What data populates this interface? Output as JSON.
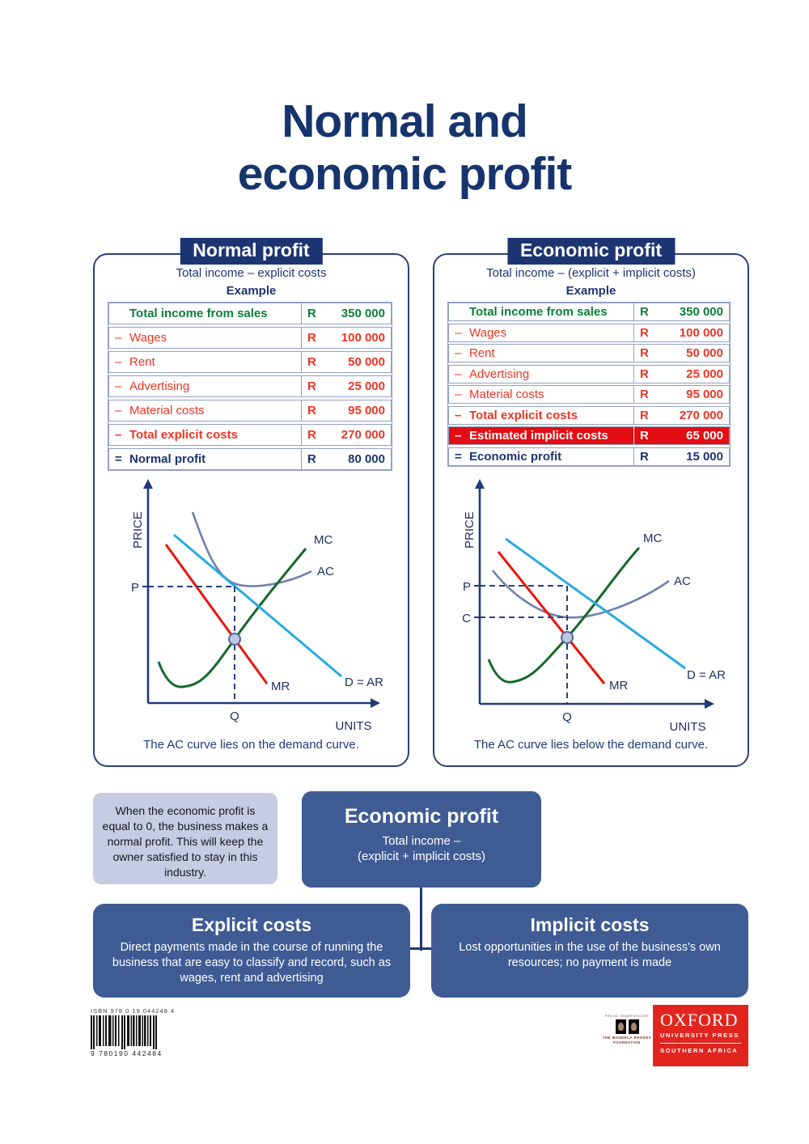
{
  "title": {
    "line1": "Normal and",
    "line2": "economic profit"
  },
  "panels": [
    {
      "badge": "Normal profit",
      "formula": "Total income – explicit costs",
      "example": "Example",
      "table": {
        "rows": [
          {
            "prefix": "",
            "label": "Total income from sales",
            "currency": "R",
            "amount": "350 000",
            "style": "income"
          },
          {
            "prefix": "–",
            "label": "Wages",
            "currency": "R",
            "amount": "100 000",
            "style": "cost"
          },
          {
            "prefix": "–",
            "label": "Rent",
            "currency": "R",
            "amount": "50 000",
            "style": "cost"
          },
          {
            "prefix": "–",
            "label": "Advertising",
            "currency": "R",
            "amount": "25 000",
            "style": "cost"
          },
          {
            "prefix": "–",
            "label": "Material costs",
            "currency": "R",
            "amount": "95 000",
            "style": "cost"
          },
          {
            "prefix": "–",
            "label": "Total explicit costs",
            "currency": "R",
            "amount": "270 000",
            "style": "cost-total"
          },
          {
            "prefix": "=",
            "label": "Normal profit",
            "currency": "R",
            "amount": "80 000",
            "style": "profit"
          }
        ]
      },
      "graph": {
        "ylabel": "PRICE",
        "xlabel": "UNITS",
        "mc": "MC",
        "ac": "AC",
        "dar": "D = AR",
        "mr": "MR",
        "p": "P",
        "q": "Q"
      },
      "caption": "The AC curve lies on the demand curve."
    },
    {
      "badge": "Economic profit",
      "formula": "Total income – (explicit + implicit costs)",
      "example": "Example",
      "table": {
        "rows": [
          {
            "prefix": "",
            "label": "Total income from sales",
            "currency": "R",
            "amount": "350 000",
            "style": "income"
          },
          {
            "prefix": "–",
            "label": "Wages",
            "currency": "R",
            "amount": "100 000",
            "style": "cost"
          },
          {
            "prefix": "–",
            "label": "Rent",
            "currency": "R",
            "amount": "50 000",
            "style": "cost"
          },
          {
            "prefix": "–",
            "label": "Advertising",
            "currency": "R",
            "amount": "25 000",
            "style": "cost"
          },
          {
            "prefix": "–",
            "label": "Material costs",
            "currency": "R",
            "amount": "95 000",
            "style": "cost"
          },
          {
            "prefix": "–",
            "label": "Total explicit costs",
            "currency": "R",
            "amount": "270 000",
            "style": "cost-total"
          },
          {
            "prefix": "–",
            "label": "Estimated implicit costs",
            "currency": "R",
            "amount": "65 000",
            "style": "implicit"
          },
          {
            "prefix": "=",
            "label": "Economic profit",
            "currency": "R",
            "amount": "15 000",
            "style": "profit"
          }
        ]
      },
      "graph": {
        "ylabel": "PRICE",
        "xlabel": "UNITS",
        "mc": "MC",
        "ac": "AC",
        "dar": "D = AR",
        "mr": "MR",
        "p": "P",
        "c": "C",
        "q": "Q"
      },
      "caption": "The AC curve lies below the demand curve."
    }
  ],
  "note_box": {
    "text": "When the economic profit is equal to 0, the business makes a normal profit. This will keep the owner satisfied to stay in this industry."
  },
  "economic_box": {
    "title": "Economic profit",
    "line1": "Total income –",
    "line2": "(explicit + implicit costs)"
  },
  "explicit_box": {
    "title": "Explicit costs",
    "body": "Direct payments made in the course of running the business that are easy to classify and record, such as wages, rent and advertising"
  },
  "implicit_box": {
    "title": "Implicit costs",
    "body": "Lost opportunities in the use of the business's own resources; no payment is made"
  },
  "footer": {
    "isbn_label": "ISBN 978 0 19 044248 4",
    "isbn_number": "9 780190 442484",
    "mandela": {
      "top": "PROUD SHAREHOLDER",
      "line1": "THE MANDELA RHODES",
      "line2": "FOUNDATION"
    },
    "oxford": {
      "name": "OXFORD",
      "sub": "UNIVERSITY PRESS",
      "region": "SOUTHERN AFRICA"
    }
  },
  "colors": {
    "navy": "#1c3572",
    "green": "#0e7d3a",
    "red": "#ee3524",
    "red_row_bg": "#e30d13",
    "steel_blue": "#3e5b94",
    "lavender": "#c6cde2",
    "cyan_curve": "#27aae1",
    "green_curve": "#15682c",
    "slate_curve": "#7080ac",
    "red_curve": "#e8150d",
    "oxford_red": "#e1251e"
  }
}
